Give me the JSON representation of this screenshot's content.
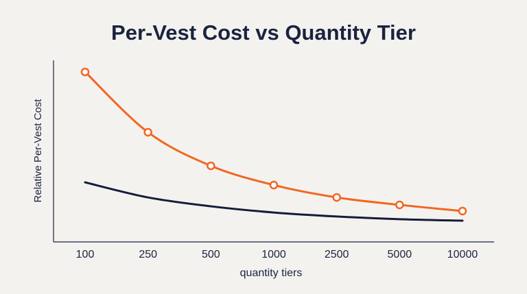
{
  "chart_data": {
    "type": "line",
    "title": "Per-Vest Cost vs Quantity Tier",
    "x_label": "quantity tiers",
    "y_label": "Relative Per-Vest Cost",
    "categories": [
      "100",
      "250",
      "500",
      "1000",
      "2500",
      "5000",
      "10000"
    ],
    "ylim": [
      0,
      100
    ],
    "series": [
      {
        "color": "#f26522",
        "markers": true,
        "values": [
          93.6,
          60.4,
          41.9,
          31.3,
          24.5,
          20.4,
          17.0
        ]
      },
      {
        "color": "#141b3c",
        "markers": false,
        "values": [
          32.8,
          24.5,
          19.6,
          16.2,
          14.0,
          12.5,
          11.7
        ]
      }
    ]
  }
}
